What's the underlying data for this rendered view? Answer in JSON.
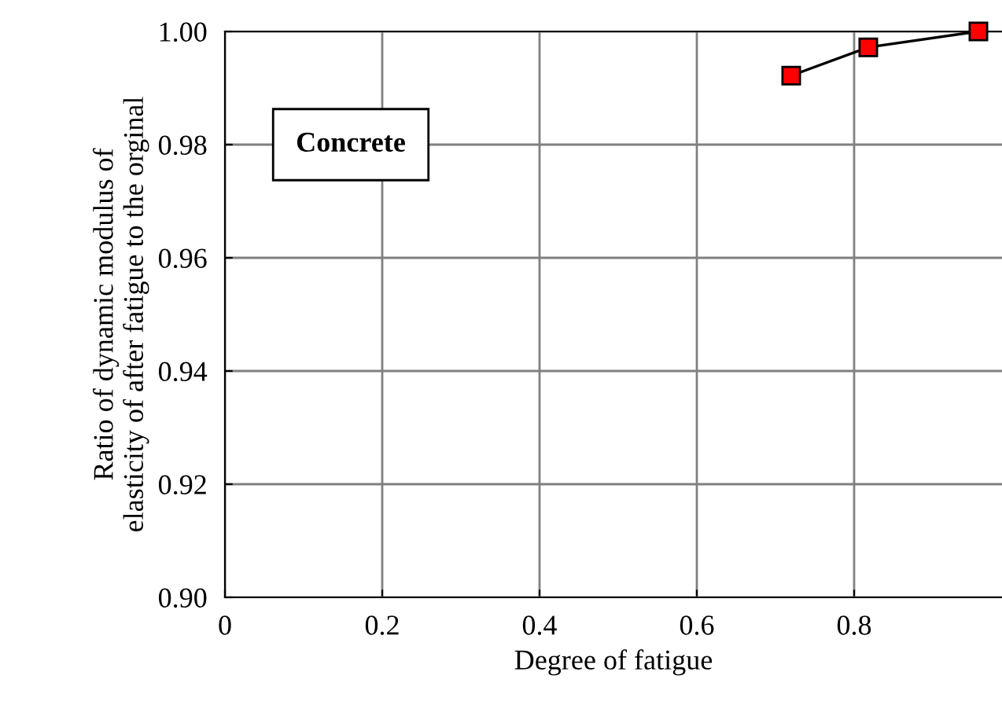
{
  "chart_data": {
    "type": "line",
    "xlabel": "Degree of fatigue",
    "ylabel": "Ratio of dynamic modulus of\nelasticity of after fatigue to the orginal",
    "annotations": [
      "Concrete"
    ],
    "series": [
      {
        "color": "#ff0000",
        "x": [
          0.72,
          0.818,
          0.958
        ],
        "values": [
          0.9922,
          0.9972,
          1.0
        ]
      }
    ],
    "xlim": [
      0,
      0.988
    ],
    "xticks": [
      0,
      0.2,
      0.4,
      0.6,
      0.8
    ],
    "ylim": [
      0.9,
      1.0
    ],
    "yticks": [
      {
        "value": 0.9,
        "label": "0.90"
      },
      {
        "value": 0.92,
        "label": "0.92"
      },
      {
        "value": 0.94,
        "label": "0.94"
      },
      {
        "value": 0.96,
        "label": "0.96"
      },
      {
        "value": 0.98,
        "label": "0.98"
      },
      {
        "value": 1.0,
        "label": "1.00"
      }
    ],
    "grid": true,
    "marker": "square",
    "line_style": "solid"
  }
}
